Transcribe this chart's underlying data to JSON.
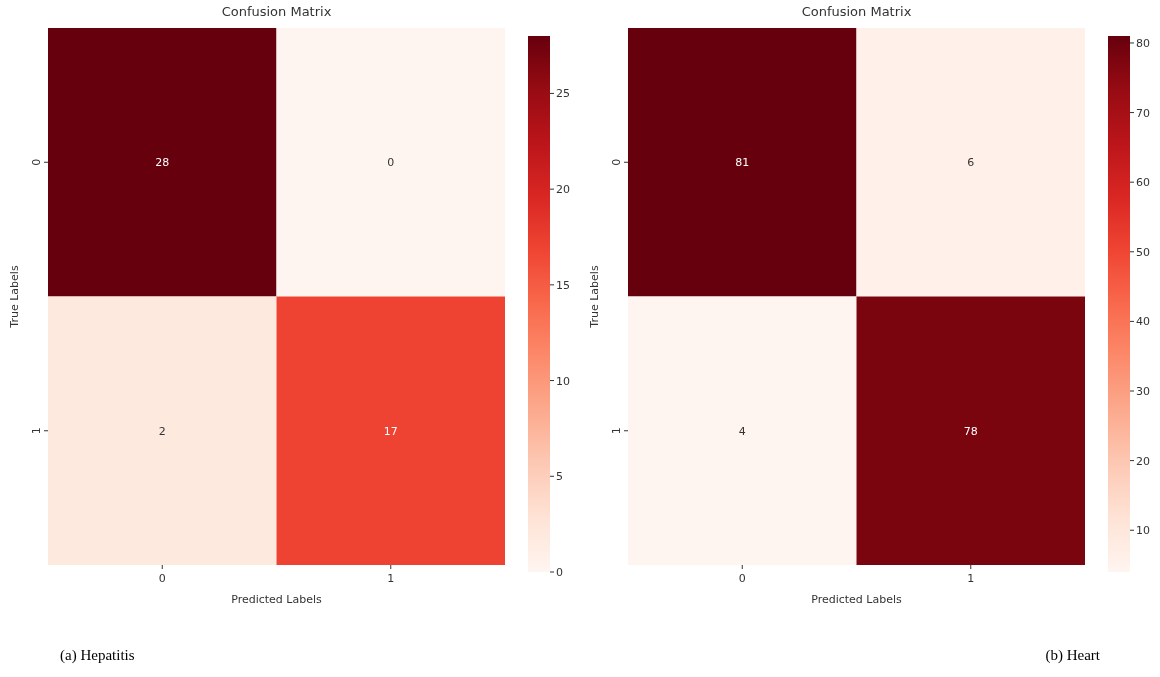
{
  "chart_data": [
    {
      "type": "heatmap",
      "title": "Confusion Matrix",
      "xlabel": "Predicted Labels",
      "ylabel": "True Labels",
      "categories": [
        "0",
        "1"
      ],
      "y_categories": [
        "0",
        "1"
      ],
      "cells": [
        [
          28,
          0
        ],
        [
          2,
          17
        ]
      ],
      "data_labels": true,
      "clim": [
        0,
        28
      ],
      "cticks": [
        0,
        5,
        10,
        15,
        20,
        25
      ],
      "annotations": [
        "(a) Hepatitis"
      ]
    },
    {
      "type": "heatmap",
      "title": "Confusion Matrix",
      "xlabel": "Predicted Labels",
      "ylabel": "True Labels",
      "categories": [
        "0",
        "1"
      ],
      "y_categories": [
        "0",
        "1"
      ],
      "cells": [
        [
          81,
          6
        ],
        [
          4,
          78
        ]
      ],
      "data_labels": true,
      "clim": [
        4,
        81
      ],
      "cticks": [
        10,
        20,
        30,
        40,
        50,
        60,
        70,
        80
      ],
      "annotations": [
        "(b) Heart"
      ]
    }
  ]
}
